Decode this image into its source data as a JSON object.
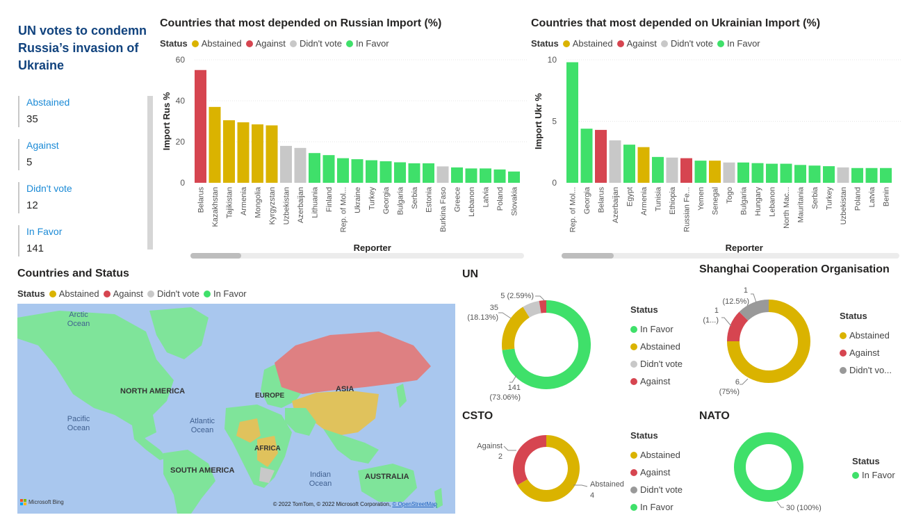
{
  "page": {
    "title": "UN votes to condemn Russia’s invasion of Ukraine"
  },
  "colors": {
    "abstained": "#dab300",
    "against": "#d64550",
    "didnt_vote": "#c8c8c8",
    "in_favor": "#3fe06a",
    "shanghai_didnt": "#999999"
  },
  "kpis": [
    {
      "label": "Abstained",
      "value": "35"
    },
    {
      "label": "Against",
      "value": "5"
    },
    {
      "label": "Didn't vote",
      "value": "12"
    },
    {
      "label": "In Favor",
      "value": "141"
    }
  ],
  "legend": {
    "head": "Status",
    "abstained": "Abstained",
    "against": "Against",
    "didnt_vote": "Didn't vote",
    "in_favor": "In Favor"
  },
  "chart_data": [
    {
      "id": "rus",
      "type": "bar",
      "title": "Countries that most depended on Russian Import (%)",
      "xlabel": "Reporter",
      "ylabel": "Import Rus %",
      "ylim": [
        0,
        60
      ],
      "yticks": [
        "0",
        "20",
        "40",
        "60"
      ],
      "categories": [
        "Belarus",
        "Kazakhstan",
        "Tajikistan",
        "Armenia",
        "Mongolia",
        "Kyrgyzstan",
        "Uzbekistan",
        "Azerbaijan",
        "Lithuania",
        "Finland",
        "Rep. of Mol...",
        "Ukraine",
        "Turkey",
        "Georgia",
        "Bulgaria",
        "Serbia",
        "Estonia",
        "Burkina Faso",
        "Greece",
        "Lebanon",
        "Latvia",
        "Poland",
        "Slovakia"
      ],
      "values": [
        55,
        37,
        30.5,
        29.5,
        28.5,
        28,
        18,
        17,
        14.5,
        13.5,
        12,
        11.5,
        11,
        10.5,
        10,
        9.5,
        9.5,
        8,
        7.5,
        7,
        7,
        6.5,
        5.5
      ],
      "status": [
        "against",
        "abstained",
        "abstained",
        "abstained",
        "abstained",
        "abstained",
        "didnt",
        "didnt",
        "favor",
        "favor",
        "favor",
        "favor",
        "favor",
        "favor",
        "favor",
        "favor",
        "favor",
        "didnt",
        "favor",
        "favor",
        "favor",
        "favor",
        "favor"
      ]
    },
    {
      "id": "ukr",
      "type": "bar",
      "title": "Countries that most depended on Ukrainian Import (%)",
      "xlabel": "Reporter",
      "ylabel": "Import Ukr %",
      "ylim": [
        0,
        10
      ],
      "yticks": [
        "0",
        "5",
        "10"
      ],
      "categories": [
        "Rep. of Mol...",
        "Georgia",
        "Belarus",
        "Azerbaijan",
        "Egypt",
        "Armenia",
        "Tunisia",
        "Ethiopia",
        "Russian Fe...",
        "Yemen",
        "Senegal",
        "Togo",
        "Bulgaria",
        "Hungary",
        "Lebanon",
        "North Mac...",
        "Mauritania",
        "Serbia",
        "Turkey",
        "Uzbekistan",
        "Poland",
        "Latvia",
        "Benin"
      ],
      "values": [
        9.8,
        4.4,
        4.3,
        3.45,
        3.1,
        2.9,
        2.1,
        2.05,
        2.0,
        1.8,
        1.8,
        1.65,
        1.65,
        1.6,
        1.55,
        1.55,
        1.45,
        1.4,
        1.35,
        1.25,
        1.2,
        1.2,
        1.2
      ],
      "status": [
        "favor",
        "favor",
        "against",
        "didnt",
        "favor",
        "abstained",
        "favor",
        "didnt",
        "against",
        "favor",
        "abstained",
        "didnt",
        "favor",
        "favor",
        "favor",
        "favor",
        "favor",
        "favor",
        "favor",
        "didnt",
        "favor",
        "favor",
        "favor"
      ]
    },
    {
      "id": "un",
      "type": "pie",
      "title": "UN",
      "slices": [
        {
          "label": "In Favor",
          "key": "favor",
          "value": 141,
          "text1": "141",
          "text2": "(73.06%)"
        },
        {
          "label": "Abstained",
          "key": "abstained",
          "value": 35,
          "text1": "35",
          "text2": "(18.13%)"
        },
        {
          "label": "Didn't vote",
          "key": "didnt",
          "value": 12,
          "text1": "",
          "text2": ""
        },
        {
          "label": "Against",
          "key": "against",
          "value": 5,
          "text1": "5 (2.59%)",
          "text2": ""
        }
      ]
    },
    {
      "id": "sco",
      "type": "pie",
      "title": "Shanghai Cooperation Organisation",
      "slices": [
        {
          "label": "Abstained",
          "key": "abstained",
          "value": 6,
          "text1": "6",
          "text2": "(75%)"
        },
        {
          "label": "Against",
          "key": "against",
          "value": 1,
          "text1": "1",
          "text2": "(1...)"
        },
        {
          "label": "Didn't vo...",
          "key": "grey",
          "value": 1,
          "text1": "1",
          "text2": "(12.5%)"
        }
      ]
    },
    {
      "id": "csto",
      "type": "pie",
      "title": "CSTO",
      "slices": [
        {
          "label": "Abstained",
          "key": "abstained",
          "value": 4,
          "text1": "Abstained",
          "text2": "4"
        },
        {
          "label": "Against",
          "key": "against",
          "value": 2,
          "text1": "Against",
          "text2": "2"
        }
      ],
      "legend": [
        "Abstained",
        "Against",
        "Didn't vote",
        "In Favor"
      ]
    },
    {
      "id": "nato",
      "type": "pie",
      "title": "NATO",
      "slices": [
        {
          "label": "In Favor",
          "key": "favor",
          "value": 30,
          "text1": "30 (100%)",
          "text2": ""
        }
      ]
    }
  ],
  "map": {
    "title": "Countries and Status",
    "labels": {
      "arctic": "Arctic Ocean",
      "north_america": "NORTH AMERICA",
      "europe": "EUROPE",
      "asia": "ASIA",
      "pacific": "Pacific Ocean",
      "atlantic": "Atlantic Ocean",
      "africa": "AFRICA",
      "south_america": "SOUTH AMERICA",
      "indian": "Indian Ocean",
      "australia": "AUSTRALIA"
    },
    "attribution_text": "© 2022 TomTom, © 2022 Microsoft Corporation, ",
    "attribution_link": "© OpenStreetMap",
    "bing": "Microsoft Bing"
  }
}
